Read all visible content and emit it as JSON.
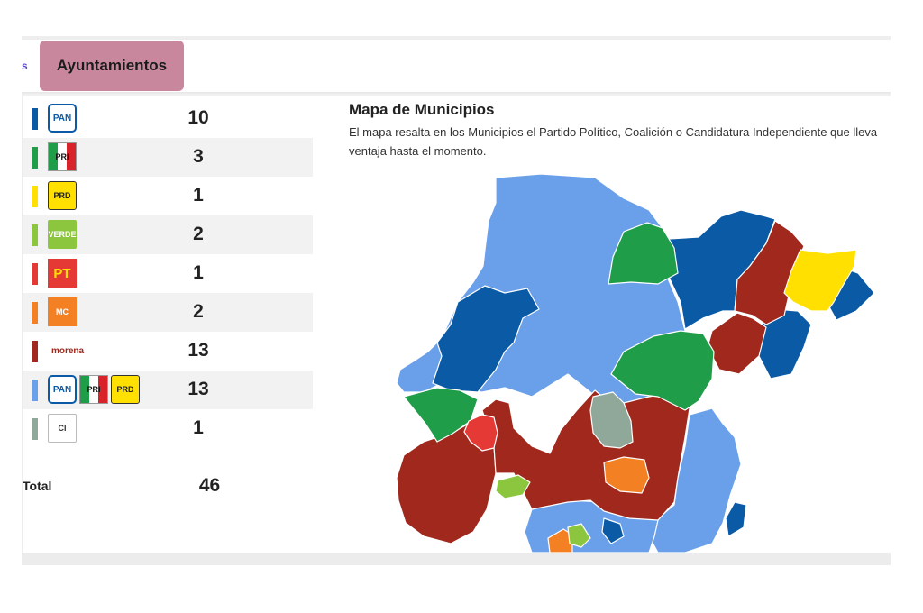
{
  "tabs": {
    "prev_label": "s",
    "active_label": "Ayuntamientos"
  },
  "parties": [
    {
      "name": "PAN",
      "color": "#0b5aa6",
      "count": "10",
      "logos": [
        "pan"
      ]
    },
    {
      "name": "PRI",
      "color": "#1f9d49",
      "count": "3",
      "logos": [
        "pri"
      ]
    },
    {
      "name": "PRD",
      "color": "#ffe000",
      "count": "1",
      "logos": [
        "prd"
      ]
    },
    {
      "name": "VERDE",
      "color": "#8cc63f",
      "count": "2",
      "logos": [
        "verde"
      ]
    },
    {
      "name": "PT",
      "color": "#e53935",
      "count": "1",
      "logos": [
        "pt"
      ]
    },
    {
      "name": "Movimiento Ciudadano",
      "color": "#f48024",
      "count": "2",
      "logos": [
        "mc"
      ]
    },
    {
      "name": "morena",
      "color": "#a0281c",
      "count": "13",
      "logos": [
        "morena"
      ]
    },
    {
      "name": "Coalición PAN-PRI-PRD",
      "color": "#6aa0ea",
      "count": "13",
      "logos": [
        "pan",
        "pri",
        "prd"
      ]
    },
    {
      "name": "CI",
      "color": "#8fa89a",
      "count": "1",
      "logos": [
        "ci"
      ]
    }
  ],
  "logo_text": {
    "pan": "PAN",
    "pri": "PRI",
    "prd": "PRD",
    "verde": "VERDE",
    "pt": "PT",
    "mc": "MC",
    "morena": "morena",
    "ci": "CI"
  },
  "total": {
    "label": "Total",
    "value": "46"
  },
  "map": {
    "title": "Mapa de Municipios",
    "description": "El mapa resalta en los Municipios el Partido Político, Coalición o Candidatura Independiente que lleva ventaja hasta el momento."
  },
  "colors": {
    "coalicion": "#6aa0ea",
    "pan": "#0b5aa6",
    "pri": "#1f9d49",
    "prd": "#ffe000",
    "verde": "#8cc63f",
    "pt": "#e53935",
    "mc": "#f48024",
    "morena": "#a0281c",
    "ci": "#8fa89a",
    "tab_active": "#c9879e"
  }
}
